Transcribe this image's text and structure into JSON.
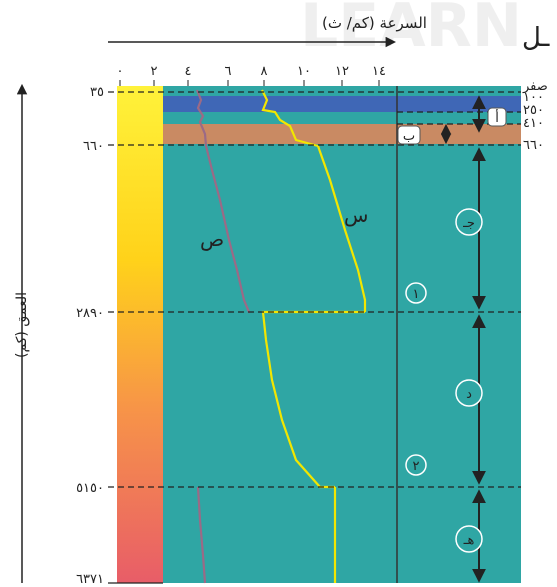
{
  "watermark": "LEARN",
  "corner_text": "ـل",
  "top_axis": {
    "title": "السرعة (كم/ ث)",
    "ticks": [
      "٠",
      "٢",
      "٤",
      "٦",
      "٨",
      "١٠",
      "١٢",
      "١٤"
    ]
  },
  "depth_axis": {
    "title": "العمق (كم)",
    "labels": [
      "٣٥",
      "٦٦٠",
      "٢٨٩٠",
      "٥١٥٠",
      "٦٣٧١"
    ]
  },
  "right_depth_labels": [
    "صفر",
    "١٠٠",
    "٢٥٠",
    "٤١٠",
    "٦٦٠"
  ],
  "curve_labels": {
    "s": "س",
    "p": "ص"
  },
  "zone_labels": {
    "a": "أ",
    "b": "ب",
    "c": "جـ",
    "d": "د",
    "e": "هـ"
  },
  "boundary_labels": {
    "one": "١",
    "two": "٢"
  },
  "colors": {
    "ocean": "#2fa6a4",
    "blue_band": "#3f67b6",
    "orange_band": "#c98a63",
    "s_curve": "#f2e600",
    "p_curve": "#9b6a86",
    "dashes": "#222222"
  }
}
